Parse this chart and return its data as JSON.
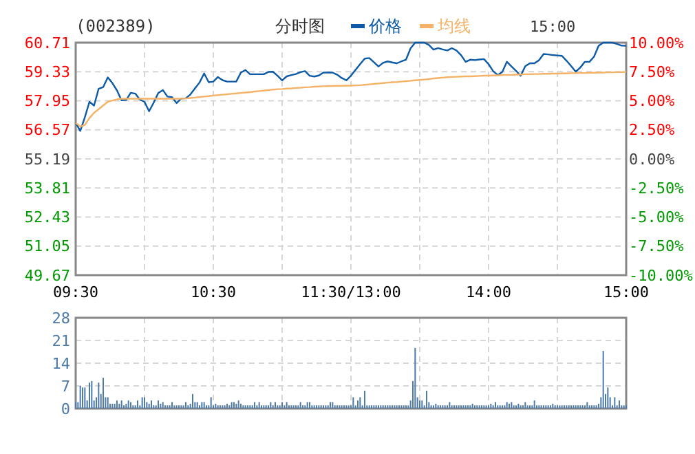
{
  "chart_data": [
    {
      "type": "line",
      "title": "(002389)",
      "subtitle": "分时图",
      "annotations": [
        "15:00"
      ],
      "legend": "top",
      "grid": true,
      "categories": [
        "09:30",
        null,
        null,
        null,
        null,
        null,
        null,
        null,
        null,
        null,
        null,
        null,
        null,
        null,
        null,
        null,
        null,
        null,
        null,
        null,
        null,
        null,
        null,
        null,
        null,
        null,
        null,
        null,
        null,
        null,
        "10:30",
        null,
        null,
        null,
        null,
        null,
        null,
        null,
        null,
        null,
        null,
        null,
        null,
        null,
        null,
        null,
        null,
        null,
        null,
        null,
        null,
        null,
        null,
        null,
        null,
        null,
        null,
        null,
        null,
        null,
        "11:30/13:00",
        null,
        null,
        null,
        null,
        null,
        null,
        null,
        null,
        null,
        null,
        null,
        null,
        null,
        null,
        null,
        null,
        null,
        null,
        null,
        null,
        null,
        null,
        null,
        null,
        null,
        null,
        null,
        null,
        null,
        "14:00",
        null,
        null,
        null,
        null,
        null,
        null,
        null,
        null,
        null,
        null,
        null,
        null,
        null,
        null,
        null,
        null,
        null,
        null,
        null,
        null,
        null,
        null,
        null,
        null,
        null,
        null,
        null,
        null,
        null,
        "15:00"
      ],
      "ylim": [
        49.67,
        60.71
      ],
      "yticks": [
        49.67,
        51.05,
        52.43,
        53.81,
        55.19,
        56.57,
        57.95,
        59.33,
        60.71
      ],
      "y2lim": [
        -10,
        10
      ],
      "y2ticks": [
        {
          "value": -10,
          "label": "-10.00%"
        },
        {
          "value": -7.5,
          "label": "-7.50%"
        },
        {
          "value": -5,
          "label": "-5.00%"
        },
        {
          "value": -2.5,
          "label": "-2.50%"
        },
        {
          "value": 0,
          "label": "0.00%"
        },
        {
          "value": 2.5,
          "label": "2.50%"
        },
        {
          "value": 5,
          "label": "5.00%"
        },
        {
          "value": 7.5,
          "label": "7.50%"
        },
        {
          "value": 10,
          "label": "10.00%"
        }
      ],
      "series": [
        {
          "name": "价格",
          "color": "#0d5aa7",
          "values": [
            56.9,
            56.52,
            57.17,
            57.9,
            57.72,
            58.52,
            58.6,
            59.06,
            58.79,
            58.44,
            57.97,
            57.99,
            58.33,
            58.29,
            58.0,
            57.9,
            57.45,
            57.86,
            58.32,
            58.46,
            58.15,
            58.12,
            57.84,
            58.06,
            58.07,
            58.25,
            58.54,
            58.82,
            59.25,
            58.83,
            58.86,
            59.08,
            58.93,
            58.86,
            58.86,
            58.86,
            59.29,
            59.41,
            59.21,
            59.21,
            59.21,
            59.21,
            59.32,
            59.33,
            59.14,
            58.92,
            59.11,
            59.17,
            59.22,
            59.31,
            59.36,
            59.14,
            59.1,
            59.15,
            59.29,
            59.29,
            59.29,
            59.19,
            59.03,
            58.92,
            59.14,
            59.42,
            59.69,
            59.95,
            59.98,
            59.78,
            59.58,
            59.75,
            59.82,
            59.77,
            59.73,
            59.82,
            59.9,
            60.44,
            60.71,
            60.71,
            60.71,
            60.6,
            60.38,
            60.45,
            60.39,
            60.34,
            60.45,
            60.34,
            60.12,
            59.8,
            59.9,
            59.88,
            59.91,
            59.93,
            59.69,
            59.36,
            59.17,
            59.32,
            59.8,
            59.58,
            59.37,
            59.14,
            59.59,
            59.73,
            59.73,
            59.88,
            60.17,
            60.15,
            60.12,
            60.1,
            60.08,
            59.85,
            59.6,
            59.33,
            59.53,
            59.8,
            59.8,
            60.05,
            60.56,
            60.71,
            60.71,
            60.71,
            60.65,
            60.57,
            60.56
          ]
        },
        {
          "name": "均线",
          "color": "#f5b266",
          "values": [
            56.9,
            56.73,
            56.8,
            57.13,
            57.38,
            57.55,
            57.73,
            57.9,
            57.96,
            58.02,
            58.05,
            58.05,
            58.05,
            58.05,
            58.05,
            58.05,
            58.05,
            58.05,
            58.05,
            58.05,
            58.05,
            58.05,
            58.05,
            58.05,
            58.06,
            58.08,
            58.1,
            58.13,
            58.15,
            58.17,
            58.2,
            58.22,
            58.24,
            58.26,
            58.28,
            58.3,
            58.32,
            58.34,
            58.36,
            58.39,
            58.41,
            58.43,
            58.46,
            58.48,
            58.5,
            58.51,
            58.53,
            58.54,
            58.56,
            58.57,
            58.59,
            58.6,
            58.62,
            58.63,
            58.64,
            58.65,
            58.65,
            58.66,
            58.66,
            58.67,
            58.67,
            58.68,
            58.69,
            58.71,
            58.73,
            58.75,
            58.77,
            58.79,
            58.81,
            58.83,
            58.84,
            58.86,
            58.88,
            58.9,
            58.92,
            58.94,
            58.96,
            58.98,
            59.01,
            59.03,
            59.05,
            59.07,
            59.08,
            59.09,
            59.1,
            59.11,
            59.11,
            59.12,
            59.13,
            59.14,
            59.14,
            59.15,
            59.16,
            59.17,
            59.18,
            59.18,
            59.19,
            59.2,
            59.21,
            59.21,
            59.22,
            59.22,
            59.23,
            59.23,
            59.24,
            59.24,
            59.25,
            59.25,
            59.26,
            59.26,
            59.27,
            59.27,
            59.28,
            59.28,
            59.29,
            59.29,
            59.3,
            59.3,
            59.31,
            59.31,
            59.32
          ]
        }
      ]
    },
    {
      "type": "bar",
      "tick_labels": "y",
      "grid": true,
      "categories": [
        null,
        null,
        null,
        null,
        null,
        null,
        null,
        null,
        null,
        null,
        null,
        null,
        null,
        null,
        null,
        null,
        null,
        null,
        null,
        null,
        null,
        null,
        null,
        null,
        null,
        null,
        null,
        null,
        null,
        null,
        null,
        null,
        null,
        null,
        null,
        null,
        null,
        null,
        null,
        null,
        null,
        null,
        null,
        null,
        null,
        null,
        null,
        null,
        null,
        null,
        null,
        null,
        null,
        null,
        null,
        null,
        null,
        null,
        null,
        null,
        null,
        null,
        null,
        null,
        null,
        null,
        null,
        null,
        null,
        null,
        null,
        null,
        null,
        null,
        null,
        null,
        null,
        null,
        null,
        null,
        null,
        null,
        null,
        null,
        null,
        null,
        null,
        null,
        null,
        null,
        null,
        null,
        null,
        null,
        null,
        null,
        null,
        null,
        null,
        null,
        null,
        null,
        null,
        null,
        null,
        null,
        null,
        null,
        null,
        null,
        null,
        null,
        null,
        null,
        null,
        null,
        null,
        null,
        null,
        null,
        null,
        null,
        null,
        null,
        null,
        null,
        null,
        null,
        null,
        null,
        null,
        null,
        null,
        null,
        null,
        null,
        null,
        null,
        null,
        null,
        null,
        null,
        null,
        null,
        null,
        null,
        null,
        null,
        null,
        null,
        null,
        null,
        null,
        null,
        null,
        null,
        null,
        null,
        null,
        null,
        null,
        null,
        null,
        null,
        null,
        null,
        null,
        null,
        null,
        null,
        null,
        null,
        null,
        null,
        null,
        null,
        null,
        null,
        null,
        null,
        null,
        null,
        null,
        null,
        null,
        null,
        null,
        null,
        null,
        null,
        null,
        null,
        null,
        null,
        null,
        null,
        null,
        null,
        null,
        null,
        null,
        null,
        null,
        null,
        null,
        null,
        null,
        null,
        null,
        null,
        null,
        null,
        null,
        null,
        null,
        null,
        null,
        null,
        null,
        null,
        null,
        null,
        null,
        null,
        null,
        null,
        null,
        null,
        null,
        null,
        null,
        null,
        null,
        null,
        null,
        null,
        null,
        null,
        null,
        null,
        null
      ],
      "ylim": [
        0,
        28
      ],
      "yticks": [
        0,
        7,
        14,
        21,
        28
      ],
      "series": [
        {
          "color": "#4d7aa6",
          "values": [
            2,
            2,
            7,
            6.5,
            6.5,
            2.5,
            8,
            8.5,
            2.5,
            3.5,
            8,
            4.5,
            9.5,
            3.5,
            3.5,
            1.5,
            1.5,
            1.5,
            2.5,
            1.5,
            2.5,
            1,
            1.5,
            2.5,
            2,
            1,
            1,
            2.5,
            1,
            3.5,
            3.5,
            2,
            1.5,
            2.5,
            1,
            1,
            2.5,
            1.5,
            2,
            1,
            1,
            1,
            2,
            1,
            1,
            1,
            1,
            1,
            2,
            1,
            1.5,
            4.5,
            2,
            2,
            1,
            2,
            2,
            1,
            1,
            3.5,
            1,
            1.5,
            1,
            1,
            1,
            1,
            1.5,
            1,
            2,
            2,
            1.5,
            2.5,
            1.5,
            1,
            1,
            1,
            1,
            1,
            2,
            1,
            2,
            1,
            1,
            1,
            1,
            2,
            1,
            2,
            1,
            1,
            2,
            1,
            2,
            1,
            1,
            1,
            1,
            1,
            2,
            1,
            1,
            2,
            2,
            1,
            1,
            1,
            1,
            1,
            1,
            1,
            1,
            2,
            2,
            1,
            1,
            1,
            1,
            1,
            1,
            1,
            1,
            3.5,
            1,
            2.5,
            3.5,
            1,
            5.5,
            1,
            1,
            1,
            1,
            1,
            1,
            1,
            1,
            1,
            1,
            1,
            1,
            1,
            1,
            1,
            1,
            1,
            1,
            1,
            2.5,
            8.5,
            18.7,
            3.5,
            2.5,
            2.5,
            1,
            5.5,
            2,
            1,
            1,
            1.5,
            1,
            1,
            1,
            1,
            1,
            2,
            1,
            1,
            1,
            1,
            1,
            1,
            1,
            1,
            1,
            1.5,
            1,
            1,
            1,
            1,
            1,
            1,
            1,
            1.5,
            1,
            2,
            1,
            1,
            1,
            1,
            2,
            1.5,
            2,
            1,
            1,
            1.5,
            1,
            1,
            2,
            1,
            1,
            1,
            2.5,
            1,
            1,
            1,
            1,
            1,
            1,
            1,
            1.5,
            1,
            1,
            1,
            1,
            1,
            1,
            1,
            1,
            1,
            1,
            1,
            1,
            1,
            1,
            2,
            1,
            1,
            1,
            1,
            1.5,
            3.5,
            17.8,
            4.5,
            6.5,
            3.5,
            1,
            3.5,
            1,
            2.5,
            1,
            1,
            1
          ]
        }
      ]
    }
  ]
}
